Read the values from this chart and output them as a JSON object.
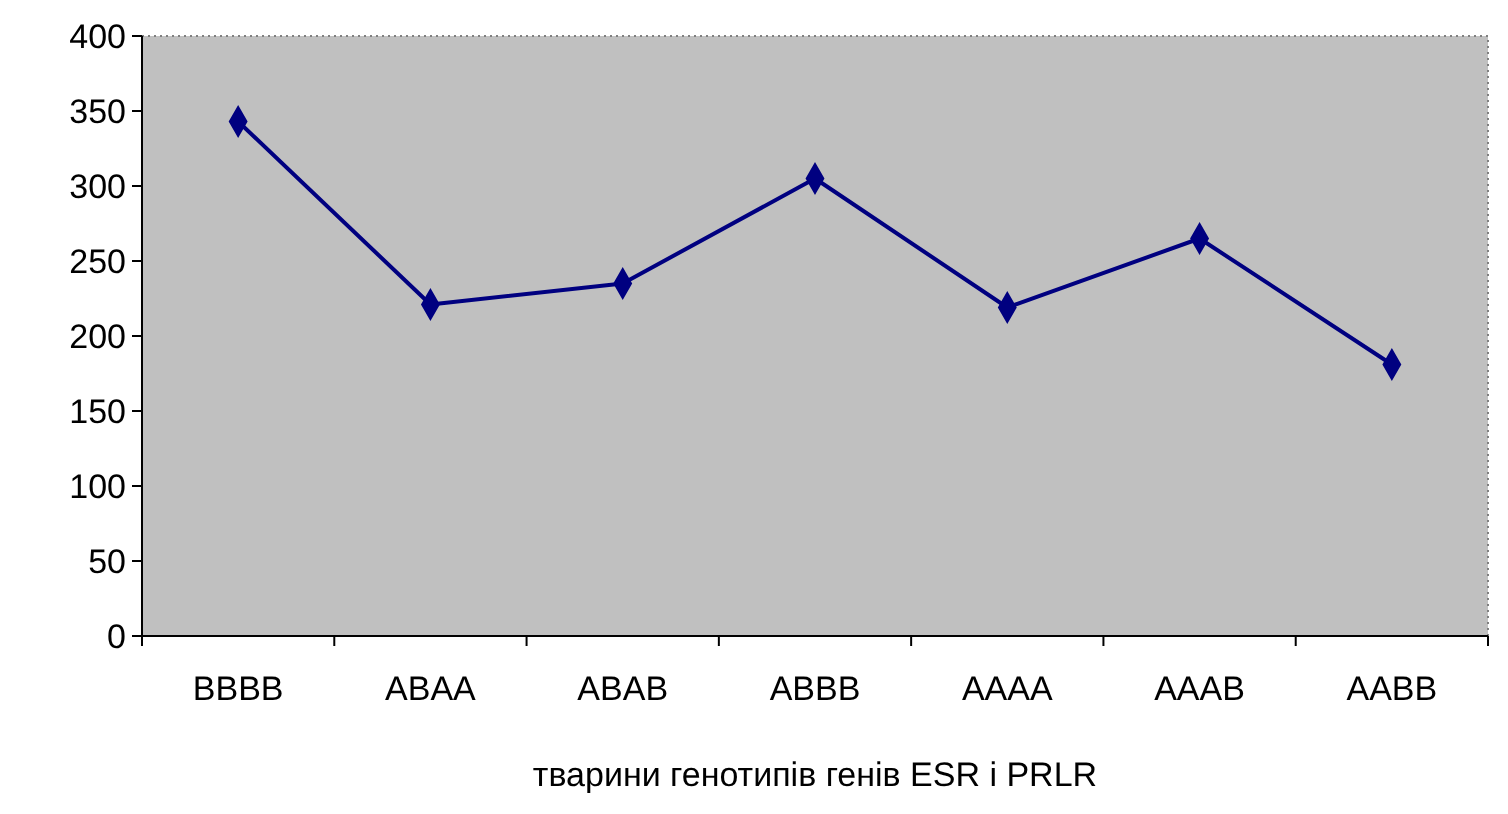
{
  "chart_data": {
    "type": "line",
    "xlabel": "тварини генотипів генів ESR і PRLR",
    "categories": [
      "BBBB",
      "ABAA",
      "ABAB",
      "ABBB",
      "AAAA",
      "AAAB",
      "AABB"
    ],
    "series": [
      {
        "color": "#000080",
        "values": [
          343,
          221,
          235,
          305,
          219,
          265,
          181
        ]
      }
    ],
    "ylim": [
      0,
      400
    ],
    "yticks": [
      0,
      50,
      100,
      150,
      200,
      250,
      300,
      350,
      400
    ],
    "grid": false,
    "marker": "diamond",
    "line_style": "solid"
  }
}
